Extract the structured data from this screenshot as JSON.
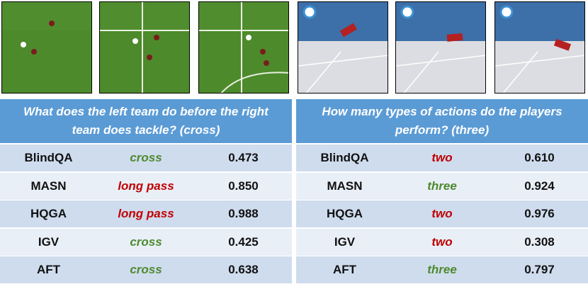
{
  "panels": [
    {
      "question": "What does the left team do before the right team does tackle? (cross)",
      "scene": "soccer",
      "rows": [
        {
          "model": "BlindQA",
          "answer": "cross",
          "correct": true,
          "score": "0.473"
        },
        {
          "model": "MASN",
          "answer": "long pass",
          "correct": false,
          "score": "0.850"
        },
        {
          "model": "HQGA",
          "answer": "long pass",
          "correct": false,
          "score": "0.988"
        },
        {
          "model": "IGV",
          "answer": "cross",
          "correct": true,
          "score": "0.425"
        },
        {
          "model": "AFT",
          "answer": "cross",
          "correct": true,
          "score": "0.638"
        }
      ]
    },
    {
      "question": "How many types of actions do the players perform? (three)",
      "scene": "gym",
      "rows": [
        {
          "model": "BlindQA",
          "answer": "two",
          "correct": false,
          "score": "0.610"
        },
        {
          "model": "MASN",
          "answer": "three",
          "correct": true,
          "score": "0.924"
        },
        {
          "model": "HQGA",
          "answer": "two",
          "correct": false,
          "score": "0.976"
        },
        {
          "model": "IGV",
          "answer": "two",
          "correct": false,
          "score": "0.308"
        },
        {
          "model": "AFT",
          "answer": "three",
          "correct": true,
          "score": "0.797"
        }
      ]
    }
  ]
}
